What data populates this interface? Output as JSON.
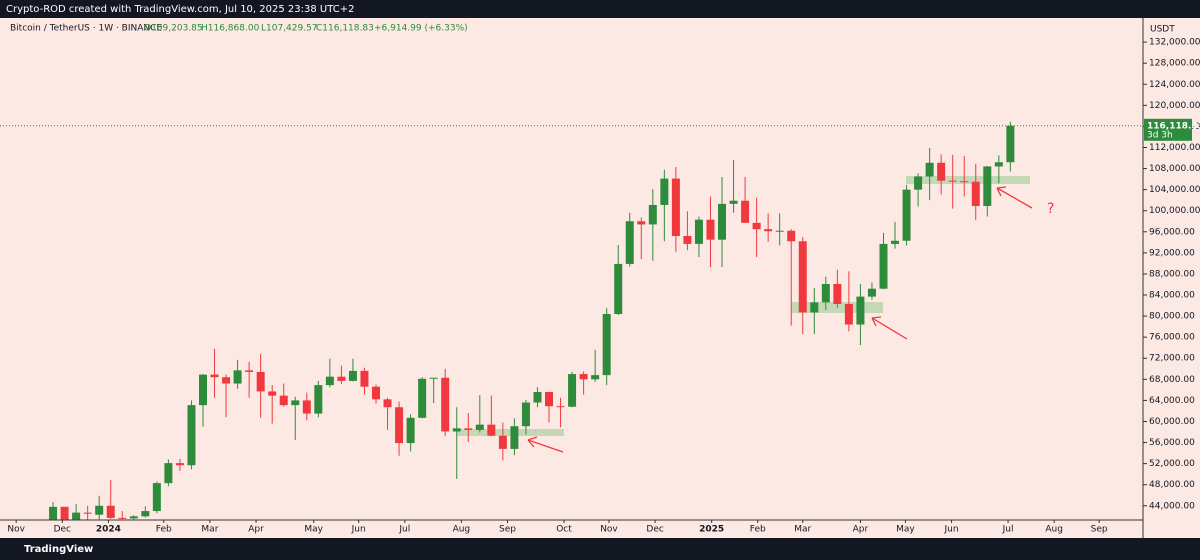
{
  "header": {
    "credit": "Crypto-ROD created with TradingView.com, Jul 10, 2025 23:38 UTC+2",
    "symbol": "Bitcoin / TetherUS · 1W · BINANCE",
    "ohlc": [
      "O109,203.85",
      "H116,868.00",
      "L107,429.57",
      "C116,118.83",
      "+6,914.99 (+6.33%)"
    ]
  },
  "chart_data": {
    "type": "candlestick",
    "currency": "USDT",
    "categories": [
      null,
      null,
      null,
      null,
      null,
      null,
      null,
      null,
      null,
      null,
      null,
      null,
      null,
      null,
      null,
      null,
      null,
      null,
      null,
      null,
      null,
      null,
      null,
      null,
      null,
      null,
      null,
      null,
      null,
      null,
      null,
      null,
      null,
      null,
      null,
      null,
      null,
      null,
      null,
      null,
      null,
      null,
      null,
      null,
      null,
      null,
      null,
      null,
      null,
      null,
      null,
      null,
      null,
      null,
      null,
      null,
      null,
      null,
      null,
      null,
      null,
      null,
      null,
      null,
      null,
      null,
      null,
      null,
      null,
      null,
      null,
      null,
      null,
      null,
      null,
      null,
      null,
      null,
      null,
      null,
      null,
      null,
      null,
      null
    ],
    "open": [
      41400,
      43800,
      41400,
      42700,
      42300,
      44000,
      41700,
      41600,
      42000,
      43000,
      48300,
      52100,
      51700,
      63100,
      68900,
      68400,
      67200,
      69700,
      69400,
      65700,
      64900,
      63100,
      64000,
      61500,
      66900,
      68500,
      67700,
      69600,
      66600,
      64200,
      62700,
      55900,
      60700,
      68100,
      68300,
      58100,
      58700,
      58400,
      59400,
      57300,
      54800,
      59100,
      63600,
      65600,
      62900,
      62800,
      69000,
      68000,
      68800,
      80400,
      89900,
      98000,
      97400,
      101100,
      106100,
      95200,
      93700,
      98300,
      94500,
      101300,
      101900,
      97700,
      96500,
      96100,
      96200,
      94200,
      80700,
      82600,
      86100,
      82300,
      78400,
      83700,
      85200,
      93700,
      94300,
      104000,
      106500,
      109100,
      105700,
      105600,
      105500,
      100900,
      108400,
      109203.85
    ],
    "high": [
      44700,
      43800,
      44300,
      44000,
      45900,
      48900,
      43000,
      42200,
      43900,
      48600,
      52800,
      52900,
      64000,
      69000,
      73800,
      68900,
      71700,
      71300,
      72800,
      66900,
      67200,
      64700,
      65500,
      67700,
      71900,
      70600,
      71900,
      70200,
      67000,
      64500,
      63800,
      61400,
      68400,
      68100,
      70000,
      62700,
      61600,
      65000,
      64900,
      59800,
      60600,
      64100,
      66500,
      65600,
      64500,
      69400,
      69500,
      73600,
      81500,
      93500,
      99600,
      98700,
      104100,
      107800,
      108300,
      99900,
      98900,
      102700,
      106400,
      109600,
      106400,
      102500,
      99500,
      99500,
      96500,
      95000,
      85300,
      87500,
      88800,
      88500,
      86100,
      86400,
      95800,
      97900,
      104900,
      107100,
      111900,
      110700,
      110600,
      110400,
      108900,
      108500,
      110500,
      116868
    ],
    "low": [
      40600,
      40200,
      40500,
      41400,
      40700,
      41500,
      40300,
      38500,
      41800,
      42600,
      47700,
      50600,
      50900,
      59000,
      64500,
      60800,
      66200,
      64500,
      60700,
      59600,
      62800,
      56500,
      60200,
      60800,
      66500,
      67100,
      67600,
      65100,
      63400,
      58400,
      53500,
      54300,
      60600,
      63500,
      57200,
      49100,
      56100,
      57900,
      57200,
      52600,
      53600,
      57500,
      62700,
      59800,
      58900,
      62700,
      65100,
      67500,
      66900,
      80200,
      89400,
      90800,
      90500,
      94200,
      92200,
      92500,
      91200,
      89300,
      89300,
      99600,
      97800,
      91200,
      94100,
      93400,
      78200,
      76600,
      76600,
      81200,
      81600,
      77100,
      74500,
      83100,
      85100,
      92800,
      93400,
      100800,
      102000,
      103100,
      100400,
      102700,
      98200,
      98900,
      105200,
      107429.57
    ],
    "close": [
      43800,
      41400,
      42700,
      42500,
      44000,
      41700,
      41600,
      42000,
      43000,
      48300,
      52100,
      51700,
      63100,
      68900,
      68400,
      67200,
      69700,
      69400,
      65700,
      64900,
      63100,
      64000,
      61500,
      66900,
      68500,
      67700,
      69600,
      66600,
      64200,
      62700,
      55900,
      60700,
      68100,
      68300,
      58100,
      58700,
      58400,
      59400,
      57300,
      54800,
      59100,
      63600,
      65600,
      62900,
      62800,
      69000,
      68000,
      68800,
      80400,
      89900,
      98000,
      97400,
      101100,
      106100,
      95200,
      93700,
      98300,
      94500,
      101300,
      101900,
      97700,
      96500,
      96100,
      96200,
      94200,
      80700,
      82600,
      86100,
      82300,
      78400,
      83700,
      85200,
      93700,
      94300,
      104000,
      106500,
      109100,
      105700,
      105600,
      105500,
      100900,
      108400,
      109200,
      116118.83
    ],
    "up_color": "#2e8b3c",
    "down_color": "#f0393f",
    "last_price": {
      "value": 116118.83,
      "label": "116,118.83"
    },
    "countdown": "3d 3h",
    "annotation": "?",
    "ylim": [
      41300,
      134300
    ],
    "yticks": [
      {
        "value": 44000,
        "label": "44,000.00"
      },
      {
        "value": 48000,
        "label": "48,000.00"
      },
      {
        "value": 52000,
        "label": "52,000.00"
      },
      {
        "value": 56000,
        "label": "56,000.00"
      },
      {
        "value": 60000,
        "label": "60,000.00"
      },
      {
        "value": 64000,
        "label": "64,000.00"
      },
      {
        "value": 68000,
        "label": "68,000.00"
      },
      {
        "value": 72000,
        "label": "72,000.00"
      },
      {
        "value": 76000,
        "label": "76,000.00"
      },
      {
        "value": 80000,
        "label": "80,000.00"
      },
      {
        "value": 84000,
        "label": "84,000.00"
      },
      {
        "value": 88000,
        "label": "88,000.00"
      },
      {
        "value": 92000,
        "label": "92,000.00"
      },
      {
        "value": 96000,
        "label": "96,000.00"
      },
      {
        "value": 100000,
        "label": "100,000.00"
      },
      {
        "value": 104000,
        "label": "104,000.00"
      },
      {
        "value": 108000,
        "label": "108,000.00"
      },
      {
        "value": 112000,
        "label": "112,000.00"
      },
      {
        "value": 116000,
        "label": "116,000.00"
      },
      {
        "value": 120000,
        "label": "120,000.00"
      },
      {
        "value": 124000,
        "label": "124,000.00"
      },
      {
        "value": 128000,
        "label": "128,000.00"
      },
      {
        "value": 132000,
        "label": "132,000.00"
      }
    ],
    "xlim": [
      -4.6,
      94.5
    ],
    "xticks": [
      {
        "value": -3.2,
        "label": "Nov"
      },
      {
        "value": 0.8,
        "label": "Dec"
      },
      {
        "value": 4.8,
        "label": "2024"
      },
      {
        "value": 9.6,
        "label": "Feb"
      },
      {
        "value": 13.6,
        "label": "Mar"
      },
      {
        "value": 17.6,
        "label": "Apr"
      },
      {
        "value": 22.6,
        "label": "May"
      },
      {
        "value": 26.5,
        "label": "Jun"
      },
      {
        "value": 30.5,
        "label": "Jul"
      },
      {
        "value": 35.4,
        "label": "Aug"
      },
      {
        "value": 39.4,
        "label": "Sep"
      },
      {
        "value": 44.3,
        "label": "Oct"
      },
      {
        "value": 48.2,
        "label": "Nov"
      },
      {
        "value": 52.2,
        "label": "Dec"
      },
      {
        "value": 57.1,
        "label": "2025"
      },
      {
        "value": 61.1,
        "label": "Feb"
      },
      {
        "value": 65.0,
        "label": "Mar"
      },
      {
        "value": 70.0,
        "label": "Apr"
      },
      {
        "value": 73.9,
        "label": "May"
      },
      {
        "value": 77.9,
        "label": "Jun"
      },
      {
        "value": 82.8,
        "label": "Jul"
      },
      {
        "value": 86.8,
        "label": "Aug"
      },
      {
        "value": 90.7,
        "label": "Sep"
      }
    ],
    "grid": false
  },
  "footer": {
    "brand": "TradingView"
  }
}
